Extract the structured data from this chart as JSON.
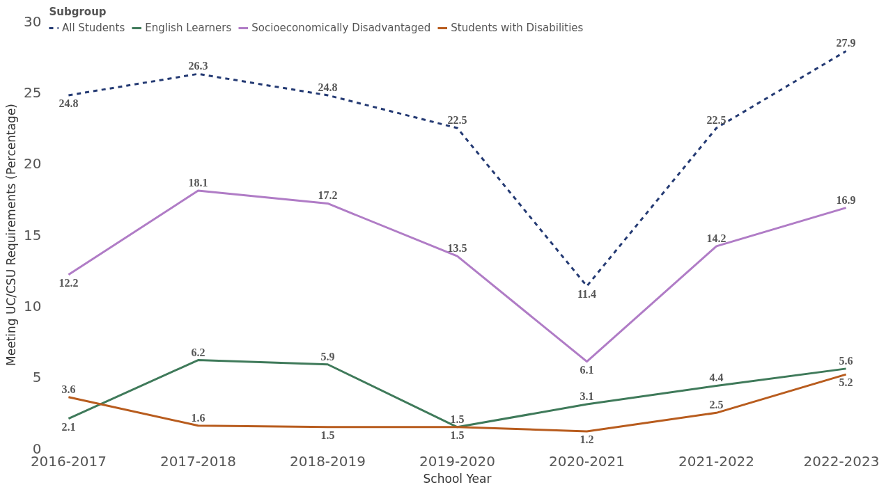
{
  "chart_data": {
    "type": "line",
    "xlabel": "School Year",
    "ylabel": "Meeting UC/CSU Requirements (Percentage)",
    "legend_title": "Subgroup",
    "legend": "top",
    "categories": [
      "2016-2017",
      "2017-2018",
      "2018-2019",
      "2019-2020",
      "2020-2021",
      "2021-2022",
      "2022-2023"
    ],
    "series": [
      {
        "name": "All Students",
        "color": "#243a73",
        "line_style": "dashed",
        "values": [
          24.8,
          26.3,
          24.8,
          22.5,
          11.4,
          22.5,
          27.9
        ]
      },
      {
        "name": "English Learners",
        "color": "#3f7a5a",
        "line_style": "solid",
        "values": [
          2.1,
          6.2,
          5.9,
          1.5,
          3.1,
          4.4,
          5.6
        ]
      },
      {
        "name": "Socioeconomically Disadvantaged",
        "color": "#b07cc6",
        "line_style": "solid",
        "values": [
          12.2,
          18.1,
          17.2,
          13.5,
          6.1,
          14.2,
          16.9
        ]
      },
      {
        "name": "Students with Disabilities",
        "color": "#b85c1e",
        "line_style": "solid",
        "values": [
          3.6,
          1.6,
          1.5,
          1.5,
          1.2,
          2.5,
          5.2
        ]
      }
    ],
    "ylim": [
      0,
      30
    ],
    "yticks": [
      0,
      5,
      10,
      15,
      20,
      25,
      30
    ],
    "grid": false,
    "data_labels": true,
    "marker": "none"
  }
}
